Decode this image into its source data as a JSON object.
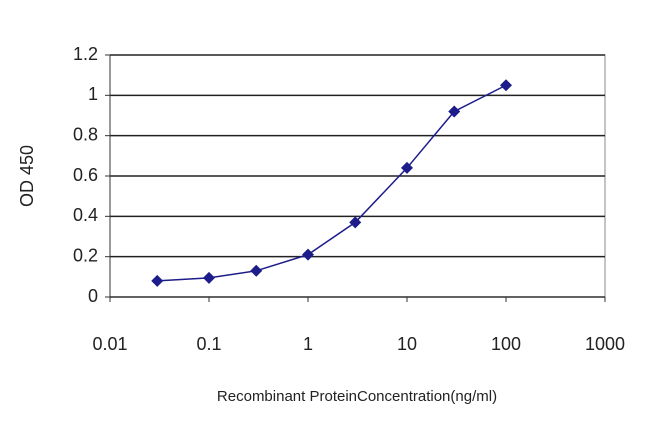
{
  "chart_data": {
    "type": "line",
    "xlabel": "Recombinant ProteinConcentration(ng/ml)",
    "ylabel": "OD 450",
    "x": [
      0.03,
      0.1,
      0.3,
      1,
      3,
      10,
      30,
      100
    ],
    "series": [
      {
        "color": "#1c1c8a",
        "values": [
          0.08,
          0.095,
          0.13,
          0.21,
          0.37,
          0.64,
          0.92,
          1.05
        ]
      }
    ],
    "xlim": [
      0.01,
      1000
    ],
    "xticks": [
      0.01,
      0.1,
      1,
      10,
      100,
      1000
    ],
    "xscale": "log",
    "ylim": [
      0,
      1.2
    ],
    "yticks": [
      0,
      0.2,
      0.4,
      0.6,
      0.8,
      1,
      1.2
    ],
    "grid": true
  }
}
